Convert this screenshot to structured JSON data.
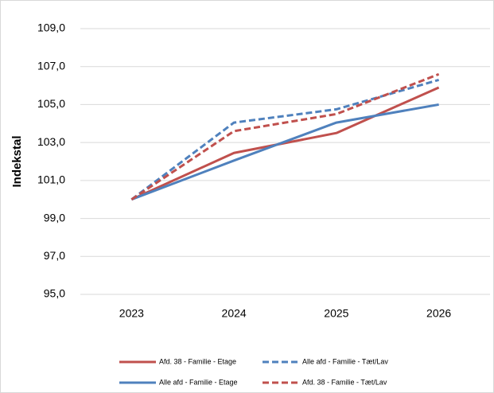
{
  "chart_data": {
    "type": "line",
    "ylabel": "Indekstal",
    "categories": [
      "2023",
      "2024",
      "2025",
      "2026"
    ],
    "series": [
      {
        "name": "Afd. 38 - Familie - Etage",
        "color": "#c0504d",
        "dashed": false,
        "values": [
          100,
          102.45,
          103.5,
          105.9
        ]
      },
      {
        "name": "Alle afd - Familie - Tæt/Lav",
        "color": "#4f81bd",
        "dashed": true,
        "values": [
          100,
          104.05,
          104.75,
          106.3
        ]
      },
      {
        "name": "Alle afd - Familie - Etage",
        "color": "#4f81bd",
        "dashed": false,
        "values": [
          100,
          102.05,
          104.05,
          105.0
        ]
      },
      {
        "name": "Afd. 38 - Familie - Tæt/Lav",
        "color": "#c0504d",
        "dashed": true,
        "values": [
          100,
          103.6,
          104.5,
          106.6
        ]
      }
    ],
    "ylim": [
      95,
      109
    ],
    "yticks": [
      {
        "value": 95,
        "label": "95,0"
      },
      {
        "value": 97,
        "label": "97,0"
      },
      {
        "value": 99,
        "label": "99,0"
      },
      {
        "value": 101,
        "label": "101,0"
      },
      {
        "value": 103,
        "label": "103,0"
      },
      {
        "value": 105,
        "label": "105,0"
      },
      {
        "value": 107,
        "label": "107,0"
      },
      {
        "value": 109,
        "label": "109,0"
      }
    ],
    "grid": true,
    "legend": "bottom"
  }
}
